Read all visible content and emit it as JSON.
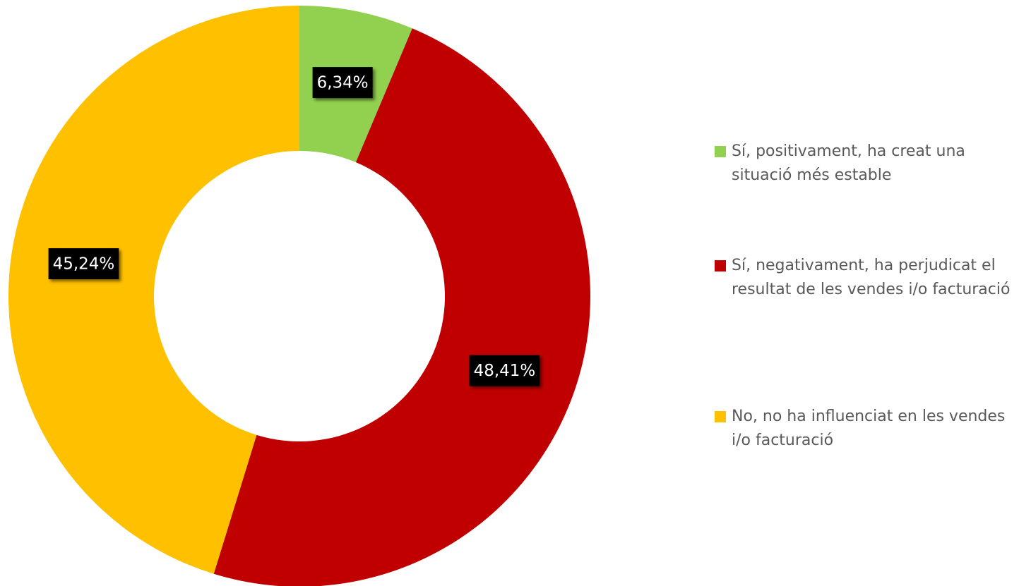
{
  "chart_data": {
    "type": "donut",
    "categories": [
      "Sí, positivament, ha creat una situació més estable",
      "Sí, negativament, ha perjudicat el resultat de les vendes i/o facturació",
      "No, no ha influenciat en les vendes i/o facturació"
    ],
    "values": [
      6.34,
      48.41,
      45.24
    ],
    "value_labels": [
      "6,34%",
      "48,41%",
      "45,24%"
    ],
    "colors": [
      "#92d050",
      "#c00000",
      "#ffc000"
    ],
    "legend": "right"
  }
}
